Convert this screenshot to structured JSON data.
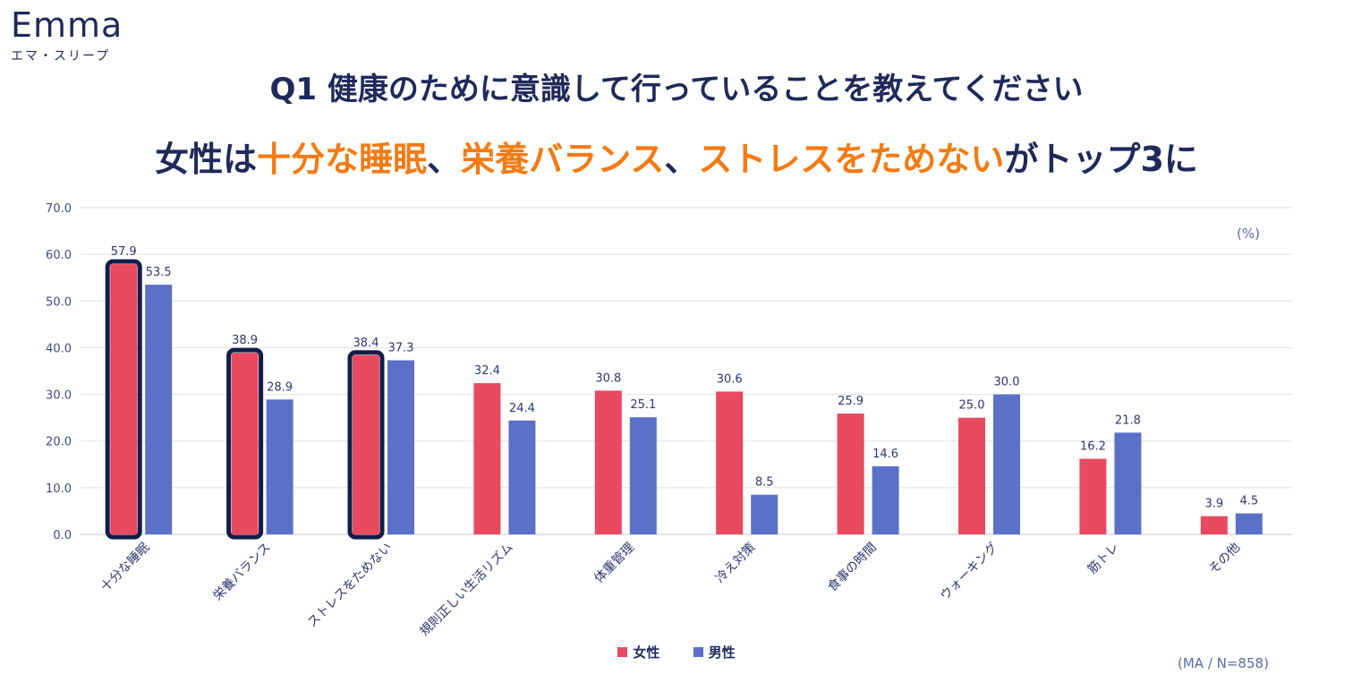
{
  "brand": {
    "name": "Emma",
    "sub": "エマ・スリープ"
  },
  "title": "Q1 健康のために意識して行っていることを教えてください",
  "subtitle": {
    "part1": "女性は",
    "hl1": "十分な睡眠",
    "sep1": "、",
    "hl2": "栄養バランス",
    "sep2": "、",
    "hl3": "ストレスをためない",
    "part2": "がトップ3に"
  },
  "unit_label": "(%)",
  "note": "(MA / N=858)",
  "colors": {
    "female": "#e84a5f",
    "male": "#5b71c8",
    "highlight_outline": "#101d4a",
    "title": "#1f2a5a",
    "accent": "#f47a12"
  },
  "chart_data": {
    "type": "bar",
    "categories": [
      "十分な睡眠",
      "栄養バランス",
      "ストレスをためない",
      "規則正しい生活リズム",
      "体重管理",
      "冷え対策",
      "食事の時間",
      "ウォーキング",
      "筋トレ",
      "その他"
    ],
    "series": [
      {
        "name": "女性",
        "values": [
          57.9,
          38.9,
          38.4,
          32.4,
          30.8,
          30.6,
          25.9,
          25.0,
          16.2,
          3.9
        ]
      },
      {
        "name": "男性",
        "values": [
          53.5,
          28.9,
          37.3,
          24.4,
          25.1,
          8.5,
          14.6,
          30.0,
          21.8,
          4.5
        ]
      }
    ],
    "ylim": [
      0,
      70
    ],
    "yticks": [
      "0.0",
      "10.0",
      "20.0",
      "30.0",
      "40.0",
      "50.0",
      "60.0",
      "70.0"
    ],
    "grid": true,
    "legend": "bottom-center",
    "highlighted_categories": [
      0,
      1,
      2
    ]
  }
}
